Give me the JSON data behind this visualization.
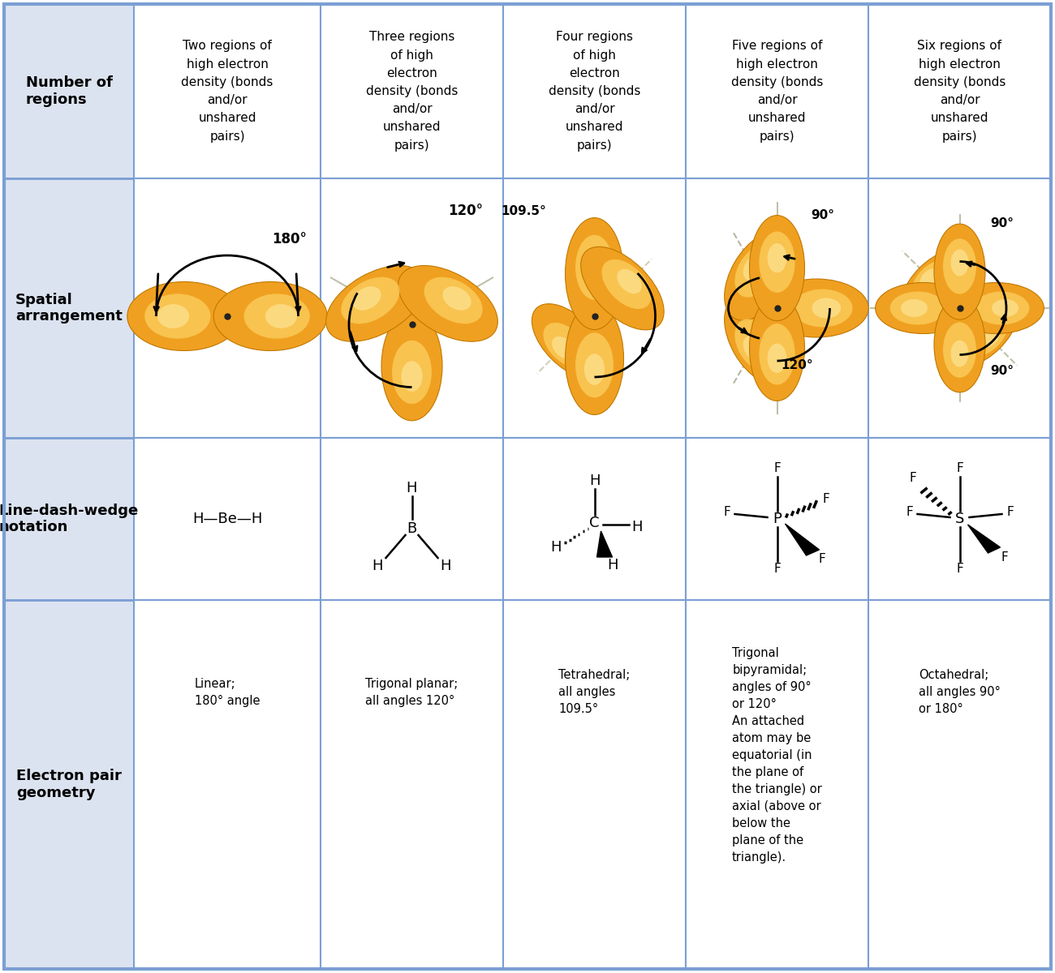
{
  "bg_color": "#dce3f0",
  "white": "#ffffff",
  "border_color": "#7b9fd4",
  "text_black": "#000000",
  "row_labels": [
    "Number of\nregions",
    "Spatial\narrangement",
    "Line-dash-wedge\nnotation",
    "Electron pair\ngeometry"
  ],
  "col_headers": [
    "Two regions of\nhigh electron\ndensity (bonds\nand/or\nunshared\npairs)",
    "Three regions\nof high\nelectron\ndensity (bonds\nand/or\nunshared\npairs)",
    "Four regions\nof high\nelectron\ndensity (bonds\nand/or\nunshared\npairs)",
    "Five regions of\nhigh electron\ndensity (bonds\nand/or\nunshared\npairs)",
    "Six regions of\nhigh electron\ndensity (bonds\nand/or\nunshared\npairs)"
  ],
  "geometry_labels": [
    "Linear;\n180° angle",
    "Trigonal planar;\nall angles 120°",
    "Tetrahedral;\nall angles\n109.5°",
    "Trigonal\nbipyramidal;\nangles of 90°\nor 120°\nAn attached\natom may be\nequatorial (in\nthe plane of\nthe triangle) or\naxial (above or\nbelow the\nplane of the\ntriangle).",
    "Octahedral;\nall angles 90°\nor 180°"
  ],
  "lobe_orange": "#f5a623",
  "lobe_dark": "#d4890a",
  "lobe_light": "#fdd090",
  "lobe_highlight": "#fee4a0"
}
